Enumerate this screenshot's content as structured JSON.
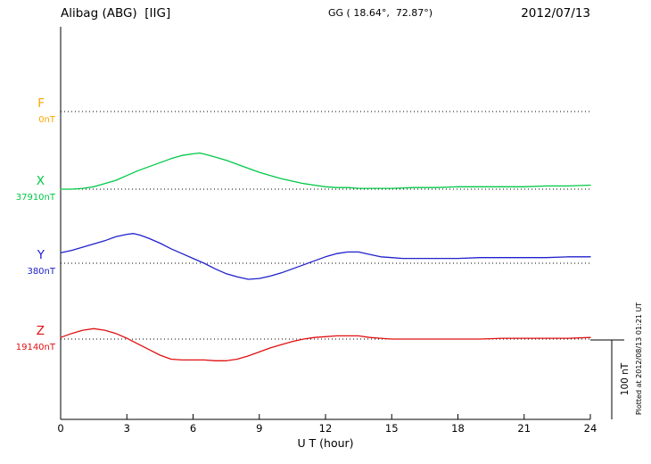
{
  "header": {
    "station_title": "Alibag (ABG)  [IIG]",
    "coords": "GG ( 18.64°,  72.87°)",
    "date": "2012/07/13"
  },
  "footer": {
    "plotted_at": "Plotted at 2012/08/13 01:21 UT"
  },
  "chart_data": {
    "type": "line",
    "title": "Alibag (ABG) [IIG] magnetogram 2012/07/13",
    "xlabel": "U T (hour)",
    "x_range": [
      0,
      24
    ],
    "x_ticks": [
      0,
      3,
      6,
      9,
      12,
      15,
      18,
      21,
      24
    ],
    "grid": "dotted horizontal baseline per component",
    "legend_position": "left",
    "scale_bar": {
      "label": "100 nT",
      "nT": 100
    },
    "series": [
      {
        "name": "F",
        "baseline_label": "0nT",
        "baseline_value_nT": 0,
        "color": "#FFA500",
        "points": []
      },
      {
        "name": "X",
        "baseline_label": "37910nT",
        "baseline_value_nT": 37910,
        "color": "#00C846",
        "points": [
          [
            0,
            0
          ],
          [
            0.5,
            0
          ],
          [
            1,
            1
          ],
          [
            1.5,
            3
          ],
          [
            2,
            7
          ],
          [
            2.5,
            11
          ],
          [
            3,
            17
          ],
          [
            3.5,
            23
          ],
          [
            4,
            28
          ],
          [
            4.5,
            33
          ],
          [
            5,
            38
          ],
          [
            5.5,
            42
          ],
          [
            6,
            44
          ],
          [
            6.3,
            45
          ],
          [
            6.6,
            43
          ],
          [
            7,
            40
          ],
          [
            7.5,
            36
          ],
          [
            8,
            31
          ],
          [
            8.5,
            26
          ],
          [
            9,
            21
          ],
          [
            9.5,
            17
          ],
          [
            10,
            13
          ],
          [
            10.5,
            10
          ],
          [
            11,
            7
          ],
          [
            11.5,
            5
          ],
          [
            12,
            3
          ],
          [
            12.5,
            2
          ],
          [
            13,
            2
          ],
          [
            13.5,
            1
          ],
          [
            14,
            1
          ],
          [
            15,
            1
          ],
          [
            16,
            2
          ],
          [
            17,
            2
          ],
          [
            18,
            3
          ],
          [
            19,
            3
          ],
          [
            20,
            3
          ],
          [
            21,
            3
          ],
          [
            22,
            4
          ],
          [
            23,
            4
          ],
          [
            24,
            5
          ]
        ]
      },
      {
        "name": "Y",
        "baseline_label": "380nT",
        "baseline_value_nT": 380,
        "color": "#2020CC",
        "points": [
          [
            0,
            13
          ],
          [
            0.5,
            16
          ],
          [
            1,
            20
          ],
          [
            1.5,
            24
          ],
          [
            2,
            28
          ],
          [
            2.5,
            33
          ],
          [
            3,
            36
          ],
          [
            3.3,
            37
          ],
          [
            3.6,
            35
          ],
          [
            4,
            31
          ],
          [
            4.5,
            25
          ],
          [
            5,
            18
          ],
          [
            5.5,
            12
          ],
          [
            6,
            6
          ],
          [
            6.5,
            0
          ],
          [
            7,
            -7
          ],
          [
            7.5,
            -13
          ],
          [
            8,
            -17
          ],
          [
            8.5,
            -20
          ],
          [
            9,
            -19
          ],
          [
            9.5,
            -16
          ],
          [
            10,
            -12
          ],
          [
            10.5,
            -7
          ],
          [
            11,
            -2
          ],
          [
            11.5,
            3
          ],
          [
            12,
            8
          ],
          [
            12.5,
            12
          ],
          [
            13,
            14
          ],
          [
            13.5,
            14
          ],
          [
            14,
            11
          ],
          [
            14.5,
            8
          ],
          [
            15,
            7
          ],
          [
            15.5,
            6
          ],
          [
            16,
            6
          ],
          [
            17,
            6
          ],
          [
            18,
            6
          ],
          [
            19,
            7
          ],
          [
            20,
            7
          ],
          [
            21,
            7
          ],
          [
            22,
            7
          ],
          [
            23,
            8
          ],
          [
            24,
            8
          ]
        ]
      },
      {
        "name": "Z",
        "baseline_label": "19140nT",
        "baseline_value_nT": 19140,
        "color": "#E01010",
        "points": [
          [
            0,
            2
          ],
          [
            0.5,
            7
          ],
          [
            1,
            11
          ],
          [
            1.5,
            13
          ],
          [
            2,
            11
          ],
          [
            2.5,
            7
          ],
          [
            3,
            1
          ],
          [
            3.5,
            -6
          ],
          [
            4,
            -13
          ],
          [
            4.5,
            -20
          ],
          [
            5,
            -25
          ],
          [
            5.5,
            -26
          ],
          [
            6,
            -26
          ],
          [
            6.5,
            -26
          ],
          [
            7,
            -27
          ],
          [
            7.5,
            -27
          ],
          [
            8,
            -25
          ],
          [
            8.5,
            -21
          ],
          [
            9,
            -16
          ],
          [
            9.5,
            -11
          ],
          [
            10,
            -7
          ],
          [
            10.5,
            -3
          ],
          [
            11,
            0
          ],
          [
            11.5,
            2
          ],
          [
            12,
            3
          ],
          [
            12.5,
            4
          ],
          [
            13,
            4
          ],
          [
            13.5,
            4
          ],
          [
            14,
            2
          ],
          [
            14.5,
            1
          ],
          [
            15,
            0
          ],
          [
            16,
            0
          ],
          [
            17,
            0
          ],
          [
            18,
            0
          ],
          [
            19,
            0
          ],
          [
            20,
            1
          ],
          [
            21,
            1
          ],
          [
            22,
            1
          ],
          [
            23,
            1
          ],
          [
            24,
            2
          ]
        ]
      }
    ]
  }
}
